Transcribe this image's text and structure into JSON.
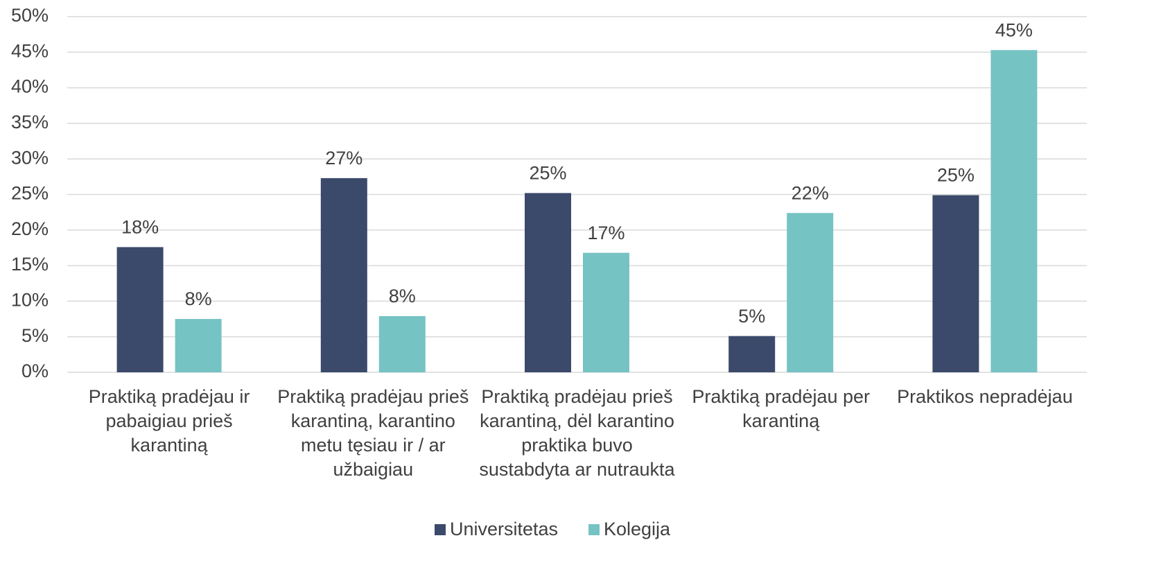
{
  "chart_data": {
    "type": "bar",
    "categories": [
      "Praktiką pradėjau ir pabaigiau prieš karantiną",
      "Praktiką pradėjau prieš karantiną, karantino metu tęsiau ir / ar užbaigiau",
      "Praktiką pradėjau prieš karantiną, dėl karantino praktika buvo sustabdyta ar nutraukta",
      "Praktiką pradėjau per karantiną",
      "Praktikos nepradėjau"
    ],
    "series": [
      {
        "name": "Universitetas",
        "color": "#3b4a6b",
        "values": [
          17.6,
          27.3,
          25.2,
          5.1,
          24.9
        ],
        "value_labels": [
          "18%",
          "27%",
          "25%",
          "5%",
          "25%"
        ]
      },
      {
        "name": "Kolegija",
        "color": "#76c3c4",
        "values": [
          7.5,
          7.9,
          16.8,
          22.4,
          45.3
        ],
        "value_labels": [
          "8%",
          "8%",
          "17%",
          "22%",
          "45%"
        ]
      }
    ],
    "ylim": [
      0,
      50
    ],
    "yticks": [
      {
        "value": 0,
        "label": "0%"
      },
      {
        "value": 5,
        "label": "5%"
      },
      {
        "value": 10,
        "label": "10%"
      },
      {
        "value": 15,
        "label": "15%"
      },
      {
        "value": 20,
        "label": "20%"
      },
      {
        "value": 25,
        "label": "25%"
      },
      {
        "value": 30,
        "label": "30%"
      },
      {
        "value": 35,
        "label": "35%"
      },
      {
        "value": 40,
        "label": "40%"
      },
      {
        "value": 45,
        "label": "45%"
      },
      {
        "value": 50,
        "label": "50%"
      }
    ],
    "grid": true,
    "legend": "bottom"
  }
}
